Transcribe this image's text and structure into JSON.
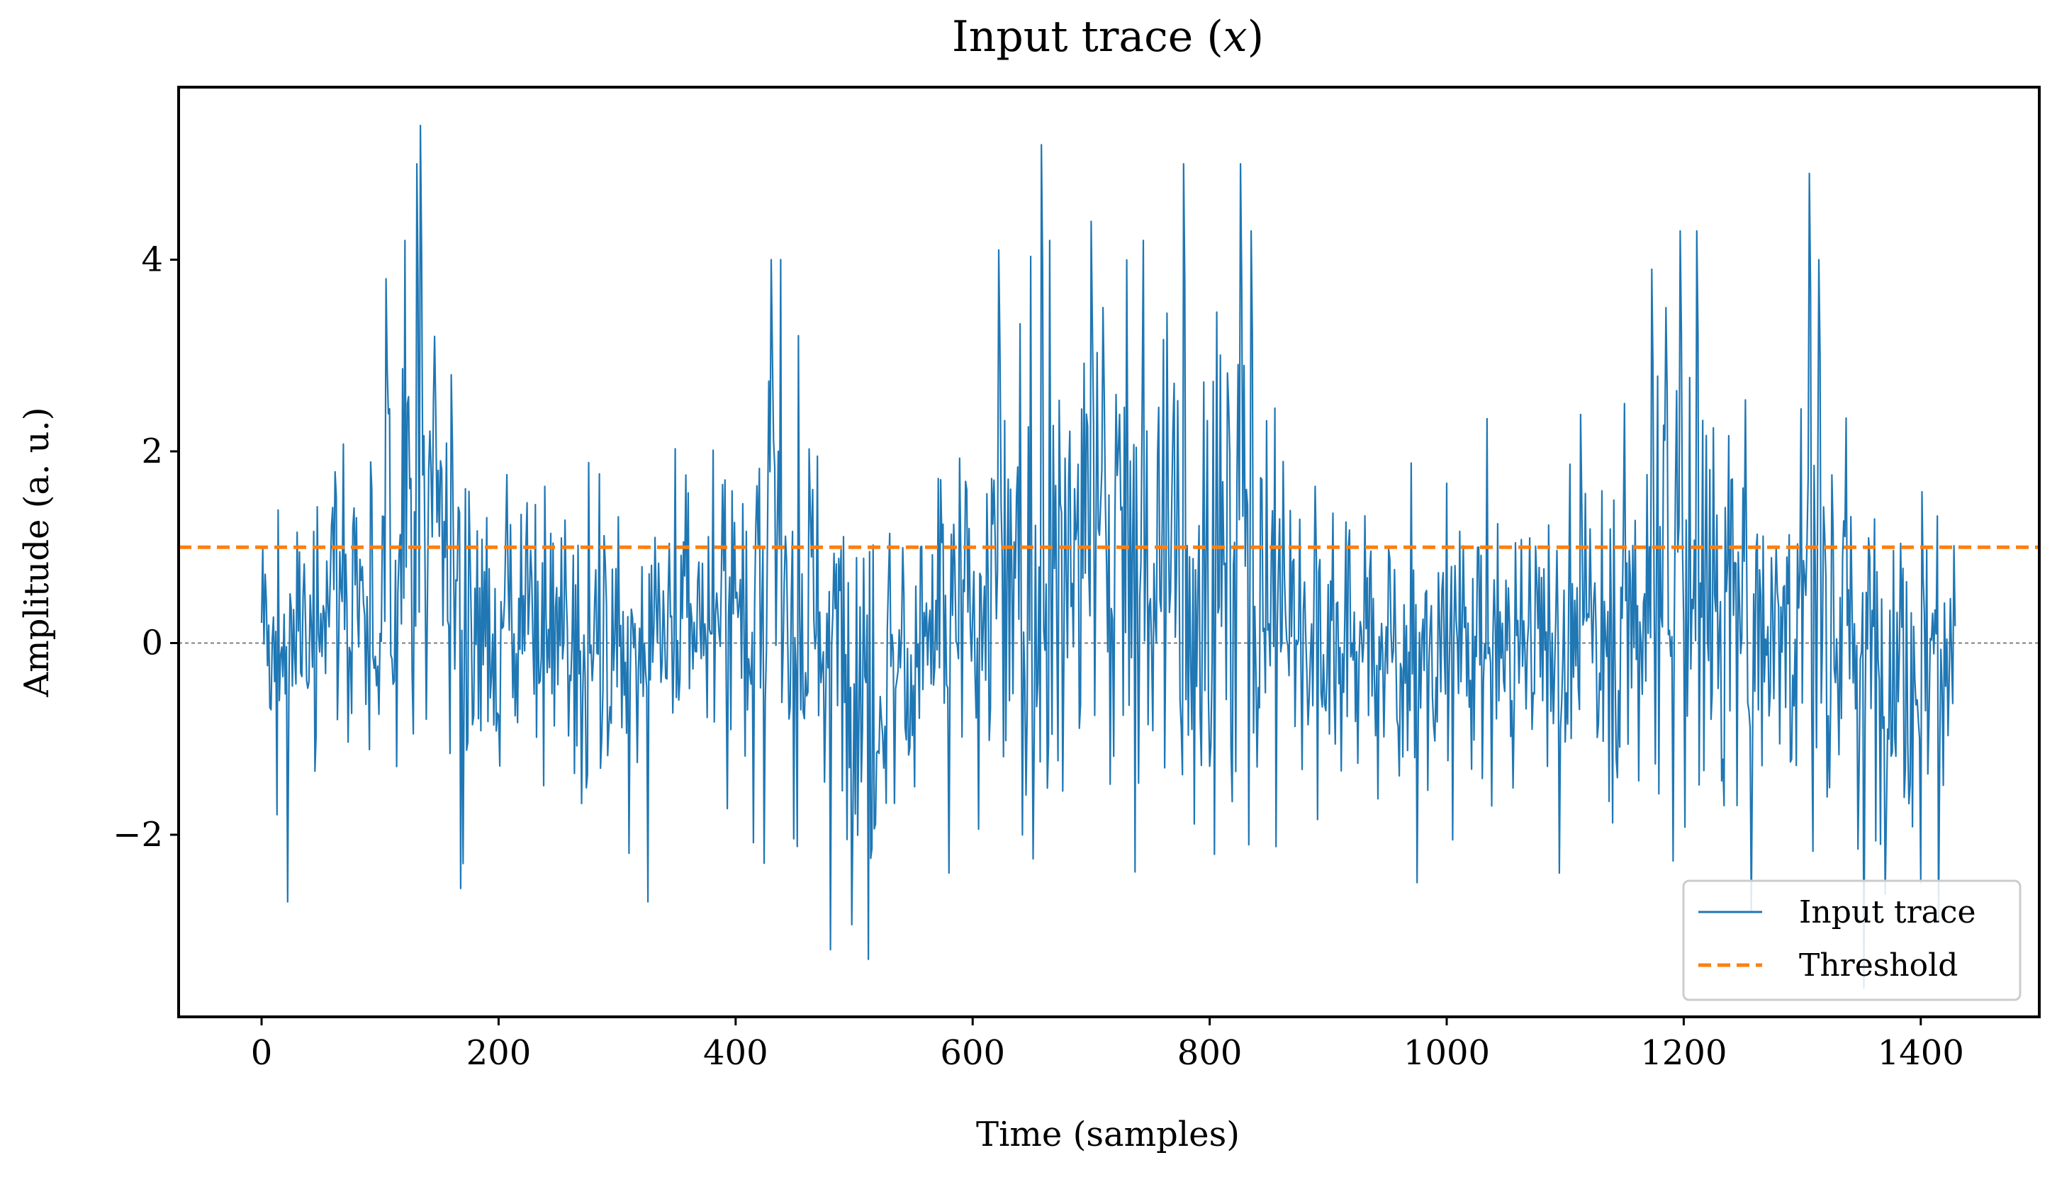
{
  "chart_data": {
    "type": "line",
    "title": "Input trace (",
    "title_var": "x",
    "title_close": ")",
    "xlabel": "Time (samples)",
    "ylabel": "Amplitude (a. u.)",
    "xlim": [
      -70,
      1500
    ],
    "ylim": [
      -3.9,
      5.8
    ],
    "xticks": [
      0,
      200,
      400,
      600,
      800,
      1000,
      1200,
      1400
    ],
    "xtick_labels": [
      "0",
      "200",
      "400",
      "600",
      "800",
      "1000",
      "1200",
      "1400"
    ],
    "yticks": [
      -2,
      0,
      2,
      4
    ],
    "ytick_labels": [
      "−2",
      "0",
      "2",
      "4"
    ],
    "zero_line": 0,
    "threshold": 1.0,
    "n_samples": 1430,
    "series": [
      {
        "name": "Input trace",
        "color": "#1f77b4",
        "style": "solid"
      },
      {
        "name": "Threshold",
        "color": "#ff7f0e",
        "style": "dashed"
      }
    ],
    "legend_placement": "lower-right",
    "grid": false,
    "colors": {
      "trace": "#1f77b4",
      "threshold": "#ff7f0e",
      "zero": "#808080",
      "axes": "#000000"
    },
    "amplitude_envelope": [
      [
        0,
        0.9
      ],
      [
        60,
        1.0
      ],
      [
        100,
        1.3
      ],
      [
        120,
        2.2
      ],
      [
        135,
        2.6
      ],
      [
        160,
        1.4
      ],
      [
        200,
        1.0
      ],
      [
        300,
        1.1
      ],
      [
        400,
        1.1
      ],
      [
        430,
        2.0
      ],
      [
        445,
        2.0
      ],
      [
        470,
        1.2
      ],
      [
        520,
        1.3
      ],
      [
        600,
        1.2
      ],
      [
        640,
        1.9
      ],
      [
        660,
        2.4
      ],
      [
        700,
        2.1
      ],
      [
        780,
        2.0
      ],
      [
        830,
        2.0
      ],
      [
        880,
        1.2
      ],
      [
        1000,
        1.1
      ],
      [
        1100,
        1.0
      ],
      [
        1170,
        1.6
      ],
      [
        1200,
        2.0
      ],
      [
        1230,
        1.7
      ],
      [
        1280,
        1.3
      ],
      [
        1310,
        2.3
      ],
      [
        1340,
        1.4
      ],
      [
        1430,
        1.0
      ]
    ],
    "mean_drift": [
      [
        0,
        0.0
      ],
      [
        130,
        0.8
      ],
      [
        170,
        0.2
      ],
      [
        300,
        0.0
      ],
      [
        430,
        0.6
      ],
      [
        460,
        0.3
      ],
      [
        520,
        -0.4
      ],
      [
        640,
        0.6
      ],
      [
        700,
        1.0
      ],
      [
        780,
        0.8
      ],
      [
        830,
        0.6
      ],
      [
        880,
        0.2
      ],
      [
        980,
        -0.2
      ],
      [
        1100,
        0.1
      ],
      [
        1200,
        0.5
      ],
      [
        1260,
        0.2
      ],
      [
        1310,
        0.6
      ],
      [
        1360,
        -0.2
      ],
      [
        1430,
        0.0
      ]
    ],
    "peaks": [
      [
        105,
        3.8
      ],
      [
        131,
        5.0
      ],
      [
        134,
        5.4
      ],
      [
        146,
        3.2
      ],
      [
        160,
        2.8
      ],
      [
        430,
        4.0
      ],
      [
        622,
        4.1
      ],
      [
        658,
        5.2
      ],
      [
        700,
        4.4
      ],
      [
        710,
        3.5
      ],
      [
        778,
        5.0
      ],
      [
        826,
        5.0
      ],
      [
        835,
        4.3
      ],
      [
        1173,
        3.9
      ],
      [
        1185,
        3.5
      ],
      [
        1197,
        4.3
      ],
      [
        1211,
        4.3
      ],
      [
        1306,
        4.9
      ],
      [
        1314,
        4.0
      ]
    ],
    "troughs": [
      [
        22,
        -2.7
      ],
      [
        170,
        -2.3
      ],
      [
        326,
        -2.7
      ],
      [
        480,
        -3.2
      ],
      [
        512,
        -3.3
      ],
      [
        580,
        -2.4
      ],
      [
        975,
        -2.5
      ],
      [
        1095,
        -2.4
      ],
      [
        1352,
        -3.6
      ],
      [
        1400,
        -2.5
      ],
      [
        1415,
        -2.9
      ]
    ]
  },
  "legend": {
    "items": [
      "Input trace",
      "Threshold"
    ]
  }
}
